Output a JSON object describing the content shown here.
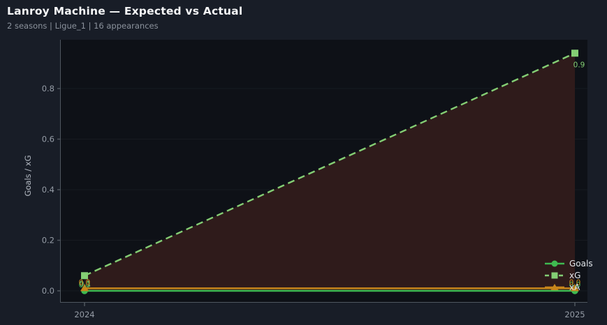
{
  "header": {
    "title": "Lanroy Machine — Expected vs Actual",
    "subtitle": "2 seasons | Ligue_1 | 16 appearances"
  },
  "chart_data": {
    "type": "line",
    "title": "Lanroy Machine — Expected vs Actual",
    "categories": [
      "2024",
      "2025"
    ],
    "series": [
      {
        "name": "Goals",
        "values": [
          0.0,
          0.0
        ],
        "labels": [
          "0.0",
          "0.0"
        ],
        "color": "#3fba50",
        "marker": "circle",
        "dash": false
      },
      {
        "name": "xG",
        "values": [
          0.06,
          0.94
        ],
        "labels": [
          "0.1",
          "0.9"
        ],
        "color": "#84ce74",
        "marker": "square",
        "dash": true,
        "area_fill": "#2f1b1b"
      },
      {
        "name": "xA",
        "values": [
          0.01,
          0.01
        ],
        "labels": [
          "0.0",
          "0.0"
        ],
        "color": "#c8861b",
        "marker": "triangle",
        "dash": false
      }
    ],
    "xlabel": "",
    "ylabel": "Goals / xG",
    "yticks": [
      0.0,
      0.2,
      0.4,
      0.6,
      0.8
    ],
    "ylim": [
      -0.047,
      0.993
    ],
    "grid": "very-faint-horizontal",
    "legend_position": "lower right",
    "colors": {
      "background": "#181d27",
      "plot_background": "#0e1117",
      "spine": "#4f565f",
      "tick_text": "#959ca6",
      "gridline": "rgba(255,255,255,0.04)",
      "legend_text": "#e2e6ea"
    }
  }
}
